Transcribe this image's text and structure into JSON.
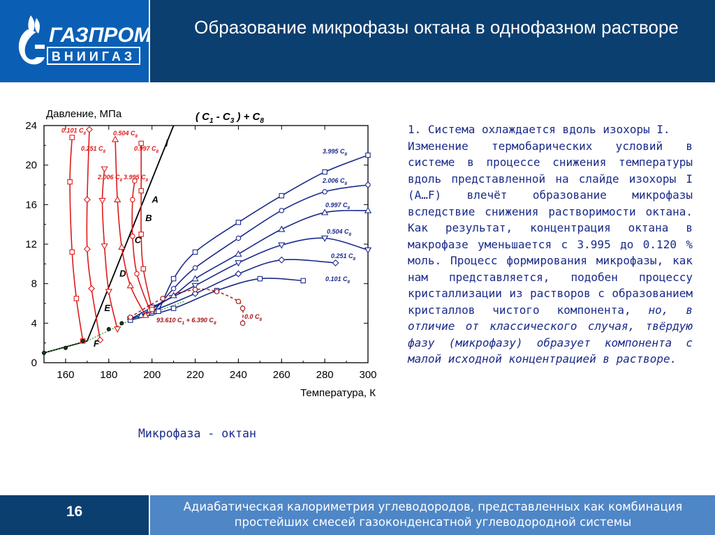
{
  "header": {
    "title": "Образование микрофазы октана в однофазном растворе",
    "logo_line1": "ГАЗПРОМ",
    "logo_line2": "ВНИИГАЗ"
  },
  "text": {
    "paragraph1": "1. Система охлаждается вдоль изохоры I.",
    "paragraph2_main": "Изменение термобарических условий в системе в процессе снижения температуры вдоль представленной на слайде изохоры I (A…F) влечёт образование микрофазы вследствие снижения растворимости октана. Как результат, концентрация октана в макрофазе уменьшается с 3.995 до 0.120 % моль. Процесс формирования микрофазы, как нам представляется, подобен процессу кристаллизации из растворов с образованием кристаллов чистого компонента, ",
    "paragraph2_italic": "но, в отличие от классического случая, твёрдую фазу (микрофазу) образует компонента с малой исходной концентрацией в растворе.",
    "caption": "Микрофаза - октан"
  },
  "footer": {
    "page_number": "16",
    "text": "Адиабатическая калориметрия углеводородов, представленных как комбинация простейших смесей газоконденсатной углеводородной системы"
  },
  "colors": {
    "logo_blue": "#0a5fb4",
    "header_navy": "#0b3f70",
    "footer_blue": "#4f86c6",
    "text_navy": "#1a2a8a",
    "series_red": "#dd1b1b",
    "series_blue": "#1a2a8a",
    "series_darkred": "#a01515"
  },
  "chart_data": {
    "type": "line",
    "title": "( C1 - C3 ) + C8",
    "xlabel": "Температура, К",
    "ylabel": "Давление, МПа",
    "xlim": [
      150,
      300
    ],
    "ylim": [
      0,
      24
    ],
    "xticks": [
      "160",
      "180",
      "200",
      "220",
      "240",
      "260",
      "280",
      "300"
    ],
    "yticks": [
      "0",
      "4",
      "8",
      "12",
      "16",
      "20",
      "24"
    ],
    "blue_series": [
      {
        "name": "3.995 C8",
        "marker": "square",
        "x": [
          203,
          210,
          220,
          240,
          260,
          280,
          300
        ],
        "y": [
          5.2,
          8.5,
          11.2,
          14.2,
          16.9,
          19.3,
          21.0
        ]
      },
      {
        "name": "2.006 C8",
        "marker": "circle",
        "x": [
          200,
          210,
          220,
          240,
          260,
          280,
          300
        ],
        "y": [
          5.0,
          7.5,
          9.6,
          12.6,
          15.4,
          17.3,
          18.0
        ]
      },
      {
        "name": "0.997 C8",
        "marker": "triangle-up",
        "x": [
          195,
          210,
          220,
          240,
          260,
          280,
          300
        ],
        "y": [
          4.8,
          6.8,
          8.5,
          11.0,
          13.5,
          15.2,
          15.4
        ]
      },
      {
        "name": "0.504 C8",
        "marker": "triangle-down",
        "x": [
          190,
          200,
          220,
          240,
          260,
          280,
          300
        ],
        "y": [
          4.4,
          5.6,
          7.8,
          10.1,
          11.9,
          12.6,
          11.4
        ]
      },
      {
        "name": "0.251 C8",
        "marker": "diamond",
        "x": [
          190,
          200,
          220,
          240,
          260,
          285
        ],
        "y": [
          4.4,
          5.2,
          7.0,
          9.0,
          10.4,
          10.1
        ]
      },
      {
        "name": "0.101 C8",
        "marker": "square-open",
        "x": [
          190,
          210,
          230,
          250,
          270
        ],
        "y": [
          4.3,
          5.5,
          7.3,
          8.5,
          8.3
        ]
      }
    ],
    "red_series": [
      {
        "name": "0.101 C8",
        "marker": "square",
        "x": [
          168,
          165,
          163,
          162,
          163
        ],
        "y": [
          2.2,
          6.5,
          11.2,
          18.3,
          22.8
        ]
      },
      {
        "name": "0.251 C8",
        "marker": "diamond",
        "x": [
          176,
          172,
          170,
          170,
          171
        ],
        "y": [
          2.3,
          7.5,
          11.5,
          16.5,
          23.6
        ]
      },
      {
        "name": "0.504 C8",
        "marker": "triangle-down",
        "x": [
          184,
          180,
          178,
          177,
          178
        ],
        "y": [
          3.4,
          7.2,
          11.8,
          16.4,
          19.6
        ]
      },
      {
        "name": "0.997 C8",
        "marker": "triangle-up",
        "x": [
          197,
          190,
          186,
          184,
          183
        ],
        "y": [
          4.8,
          7.8,
          11.7,
          16.5,
          22.6
        ]
      },
      {
        "name": "2.006 C8",
        "marker": "circle",
        "x": [
          199,
          193,
          191,
          191,
          192
        ],
        "y": [
          5.3,
          9.0,
          12.8,
          16.5,
          18.4
        ]
      },
      {
        "name": "3.995 C8",
        "marker": "square",
        "x": [
          200,
          196,
          195,
          195,
          195
        ],
        "y": [
          5.4,
          9.5,
          13.0,
          17.4,
          22.2
        ]
      }
    ],
    "phase_series": {
      "name": "93.610 C1 + 6.390 C8",
      "label_right": "0.0 C8",
      "x": [
        190,
        205,
        220,
        230,
        240,
        242,
        242
      ],
      "y": [
        4.6,
        6.5,
        7.4,
        7.2,
        6.2,
        5.5,
        4.0
      ]
    },
    "isochore": {
      "name": "I",
      "x": [
        150,
        170,
        210
      ],
      "y": [
        1.0,
        2.2,
        24
      ]
    },
    "points": [
      {
        "label": "A",
        "x": 198,
        "y": 16.5
      },
      {
        "label": "B",
        "x": 195,
        "y": 14.6
      },
      {
        "label": "C",
        "x": 190,
        "y": 12.4
      },
      {
        "label": "D",
        "x": 183,
        "y": 9.0
      },
      {
        "label": "E",
        "x": 176,
        "y": 5.5
      },
      {
        "label": "F",
        "x": 171,
        "y": 1.9
      }
    ]
  }
}
